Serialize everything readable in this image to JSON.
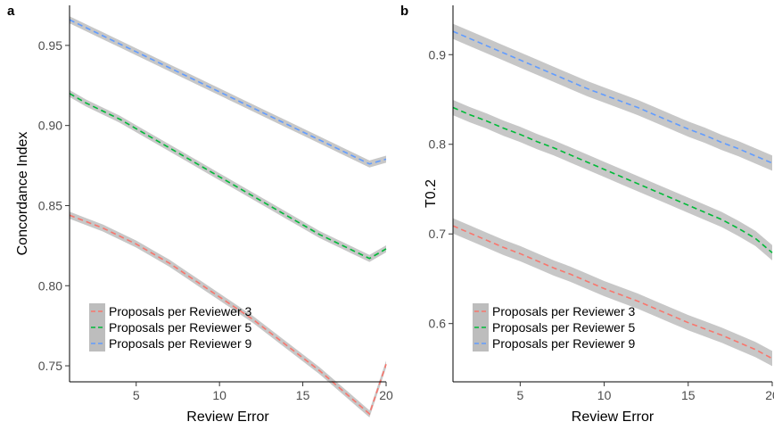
{
  "chart_data": [
    {
      "panel": "a",
      "type": "line",
      "xlabel": "Review Error",
      "ylabel": "Concordance Index",
      "xlim": [
        1,
        20
      ],
      "ylim": [
        0.74,
        0.975
      ],
      "xticks": [
        5,
        10,
        15,
        20
      ],
      "yticks": [
        0.75,
        0.8,
        0.85,
        0.9,
        0.95
      ],
      "ytick_labels": [
        "0.75",
        "0.80",
        "0.85",
        "0.90",
        "0.95"
      ],
      "grid": false,
      "legend_position": "bottom-left",
      "confidence_band": true,
      "x": [
        1,
        2,
        3,
        4,
        5,
        6,
        7,
        8,
        9,
        10,
        11,
        12,
        13,
        14,
        15,
        16,
        17,
        18,
        19,
        20
      ],
      "series": [
        {
          "name": "Proposals per Reviewer 3",
          "color": "#F8766D",
          "values": [
            0.844,
            0.84,
            0.836,
            0.831,
            0.826,
            0.82,
            0.814,
            0.807,
            0.8,
            0.793,
            0.786,
            0.779,
            0.771,
            0.763,
            0.755,
            0.747,
            0.738,
            0.729,
            0.72,
            0.751
          ]
        },
        {
          "name": "Proposals per Reviewer 5",
          "color": "#00BA38",
          "values": [
            0.92,
            0.914,
            0.909,
            0.904,
            0.898,
            0.892,
            0.886,
            0.88,
            0.874,
            0.868,
            0.862,
            0.856,
            0.85,
            0.844,
            0.838,
            0.832,
            0.827,
            0.822,
            0.817,
            0.823
          ]
        },
        {
          "name": "Proposals per Reviewer 9",
          "color": "#619CFF",
          "values": [
            0.966,
            0.961,
            0.956,
            0.951,
            0.946,
            0.941,
            0.936,
            0.931,
            0.926,
            0.921,
            0.916,
            0.911,
            0.906,
            0.901,
            0.896,
            0.891,
            0.886,
            0.881,
            0.876,
            0.879
          ]
        }
      ]
    },
    {
      "panel": "b",
      "type": "line",
      "xlabel": "Review Error",
      "ylabel": "T0.2",
      "xlim": [
        1,
        20
      ],
      "ylim": [
        0.535,
        0.955
      ],
      "xticks": [
        5,
        10,
        15,
        20
      ],
      "yticks": [
        0.6,
        0.7,
        0.8,
        0.9
      ],
      "ytick_labels": [
        "0.6",
        "0.7",
        "0.8",
        "0.9"
      ],
      "grid": false,
      "legend_position": "bottom-left",
      "confidence_band": true,
      "x": [
        1,
        2,
        3,
        4,
        5,
        6,
        7,
        8,
        9,
        10,
        11,
        12,
        13,
        14,
        15,
        16,
        17,
        18,
        19,
        20
      ],
      "series": [
        {
          "name": "Proposals per Reviewer 3",
          "color": "#F8766D",
          "values": [
            0.709,
            0.701,
            0.693,
            0.685,
            0.678,
            0.67,
            0.662,
            0.655,
            0.647,
            0.639,
            0.632,
            0.625,
            0.617,
            0.609,
            0.601,
            0.594,
            0.587,
            0.579,
            0.571,
            0.561
          ]
        },
        {
          "name": "Proposals per Reviewer 5",
          "color": "#00BA38",
          "values": [
            0.841,
            0.833,
            0.826,
            0.818,
            0.811,
            0.803,
            0.796,
            0.788,
            0.78,
            0.772,
            0.764,
            0.756,
            0.748,
            0.74,
            0.732,
            0.724,
            0.716,
            0.706,
            0.695,
            0.679
          ]
        },
        {
          "name": "Proposals per Reviewer 9",
          "color": "#619CFF",
          "values": [
            0.926,
            0.918,
            0.91,
            0.902,
            0.894,
            0.886,
            0.878,
            0.87,
            0.862,
            0.855,
            0.848,
            0.841,
            0.833,
            0.825,
            0.817,
            0.81,
            0.802,
            0.795,
            0.787,
            0.779
          ]
        }
      ]
    }
  ]
}
